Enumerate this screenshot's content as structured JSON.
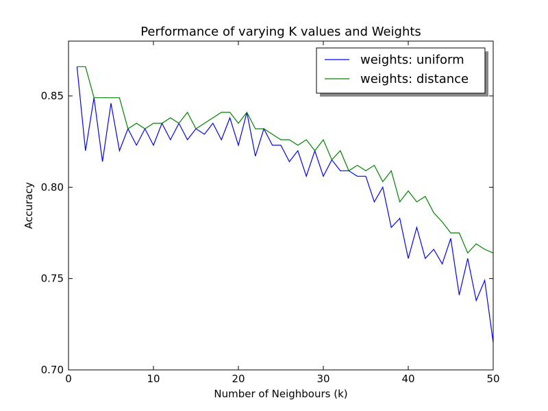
{
  "chart_data": {
    "type": "line",
    "title": "Performance of varying K values and Weights",
    "xlabel": "Number of Neighbours (k)",
    "ylabel": "Accuracy",
    "xlim": [
      0,
      50
    ],
    "ylim": [
      0.7,
      0.88
    ],
    "xticks": [
      0,
      10,
      20,
      30,
      40,
      50
    ],
    "yticks": [
      0.7,
      0.75,
      0.8,
      0.85
    ],
    "xtick_labels": [
      "0",
      "10",
      "20",
      "30",
      "40",
      "50"
    ],
    "ytick_labels": [
      "0.70",
      "0.75",
      "0.80",
      "0.85"
    ],
    "grid": false,
    "legend_position": "top-right",
    "x": [
      1,
      2,
      3,
      4,
      5,
      6,
      7,
      8,
      9,
      10,
      11,
      12,
      13,
      14,
      15,
      16,
      17,
      18,
      19,
      20,
      21,
      22,
      23,
      24,
      25,
      26,
      27,
      28,
      29,
      30,
      31,
      32,
      33,
      34,
      35,
      36,
      37,
      38,
      39,
      40,
      41,
      42,
      43,
      44,
      45,
      46,
      47,
      48,
      49,
      50
    ],
    "series": [
      {
        "name": "weights: uniform",
        "color": "#0000ff",
        "values": [
          0.866,
          0.82,
          0.849,
          0.814,
          0.846,
          0.82,
          0.832,
          0.823,
          0.832,
          0.823,
          0.835,
          0.826,
          0.835,
          0.826,
          0.832,
          0.829,
          0.835,
          0.826,
          0.838,
          0.823,
          0.841,
          0.817,
          0.832,
          0.823,
          0.823,
          0.814,
          0.82,
          0.806,
          0.82,
          0.806,
          0.815,
          0.809,
          0.809,
          0.806,
          0.806,
          0.792,
          0.8,
          0.778,
          0.783,
          0.761,
          0.778,
          0.761,
          0.766,
          0.758,
          0.772,
          0.741,
          0.761,
          0.738,
          0.749,
          0.715
        ]
      },
      {
        "name": "weights: distance",
        "color": "#008000",
        "values": [
          0.866,
          0.866,
          0.849,
          0.849,
          0.849,
          0.849,
          0.832,
          0.835,
          0.832,
          0.835,
          0.835,
          0.838,
          0.835,
          0.841,
          0.832,
          0.835,
          0.838,
          0.841,
          0.841,
          0.835,
          0.841,
          0.832,
          0.832,
          0.829,
          0.826,
          0.826,
          0.823,
          0.826,
          0.82,
          0.826,
          0.815,
          0.82,
          0.809,
          0.812,
          0.809,
          0.812,
          0.803,
          0.809,
          0.792,
          0.798,
          0.792,
          0.795,
          0.786,
          0.781,
          0.775,
          0.775,
          0.764,
          0.769,
          0.766,
          0.764
        ]
      }
    ]
  }
}
